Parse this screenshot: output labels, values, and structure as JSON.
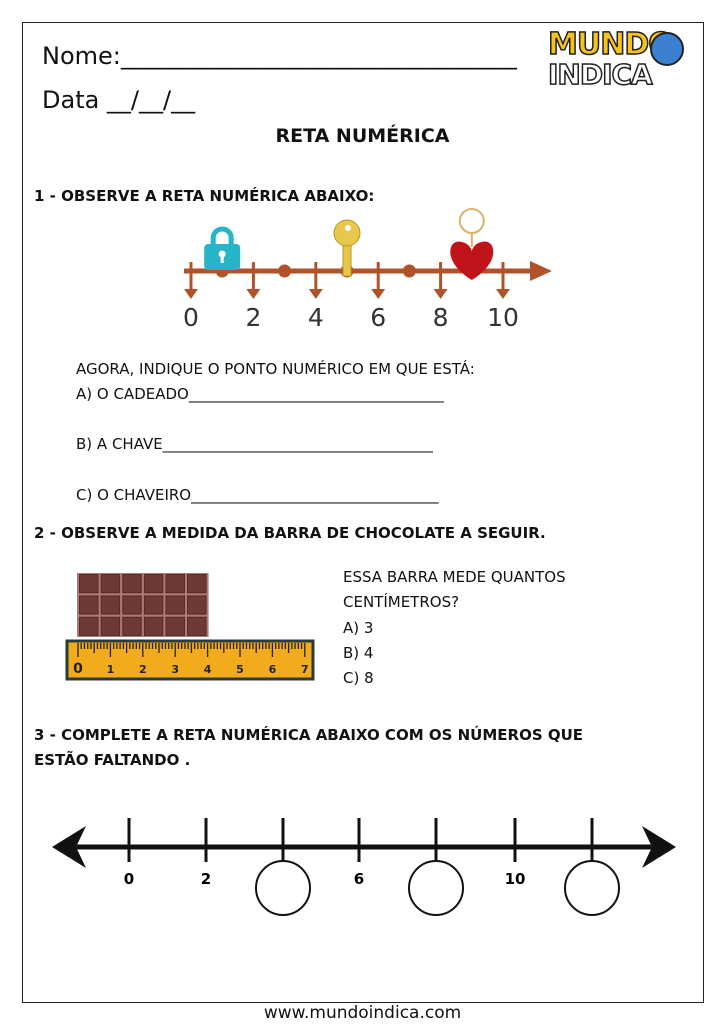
{
  "header": {
    "name_label": "Nome:_________________________________",
    "date_label": "Data __/__/__",
    "logo_text": "MUNDO INDICA"
  },
  "title": "RETA NUMÉRICA",
  "q1": {
    "heading": "1 - OBSERVE A RETA NUMÉRICA ABAIXO:",
    "number_labels": [
      "0",
      "2",
      "4",
      "6",
      "8",
      "10"
    ],
    "objects": [
      {
        "name": "lock",
        "position": 1,
        "color": "#26b5c6"
      },
      {
        "name": "key",
        "position": 5,
        "color": "#e8c84a"
      },
      {
        "name": "heart-keychain",
        "position": 9,
        "color": "#c0141a"
      }
    ],
    "line_color": "#b0532a",
    "prompt": "AGORA, INDIQUE O PONTO NUMÉRICO EM QUE ESTÁ:",
    "items": [
      "A) O CADEADO__________________________________",
      "B) A CHAVE____________________________________",
      "C) O CHAVEIRO_________________________________"
    ]
  },
  "q2": {
    "heading": "2 - OBSERVE A MEDIDA DA BARRA DE CHOCOLATE A SEGUIR.",
    "question_line1": "ESSA BARRA MEDE QUANTOS",
    "question_line2": "CENTÍMETROS?",
    "options": [
      "A) 3",
      "B) 4",
      "C) 8"
    ],
    "ruler_labels": [
      "0",
      "1",
      "2",
      "3",
      "4",
      "5",
      "6",
      "7"
    ],
    "chocolate_length_cm": 4,
    "ruler_color": "#f2ab1c",
    "chocolate_color": "#6e3a36"
  },
  "q3": {
    "heading_line1": "3 - COMPLETE A RETA NUMÉRICA ABAIXO COM OS NÚMEROS QUE",
    "heading_line2": "ESTÃO FALTANDO .",
    "labels": [
      "0",
      "2",
      "",
      "6",
      "",
      "10",
      ""
    ]
  },
  "footer": {
    "url": "www.mundoindica.com"
  }
}
